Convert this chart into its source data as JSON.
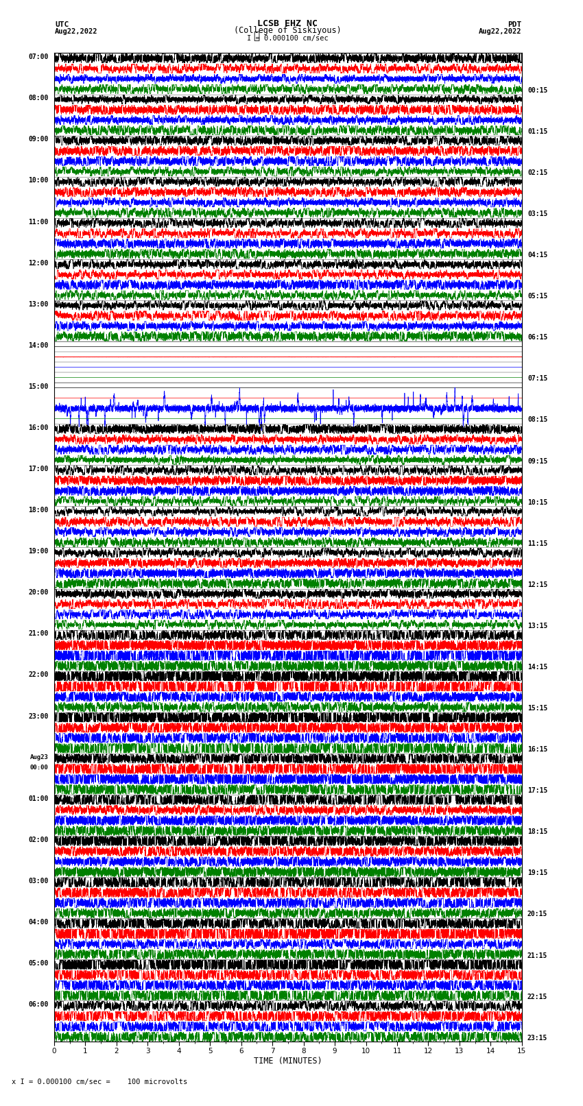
{
  "title_line1": "LCSB EHZ NC",
  "title_line2": "(College of Siskiyous)",
  "scale_text": "I = 0.000100 cm/sec",
  "label_utc": "UTC",
  "label_date_left": "Aug22,2022",
  "label_pdt": "PDT",
  "label_date_right": "Aug22,2022",
  "xlabel": "TIME (MINUTES)",
  "footer": "x I = 0.000100 cm/sec =    100 microvolts",
  "left_labels": [
    "07:00",
    "08:00",
    "09:00",
    "10:00",
    "11:00",
    "12:00",
    "13:00",
    "14:00",
    "15:00",
    "16:00",
    "17:00",
    "18:00",
    "19:00",
    "20:00",
    "21:00",
    "22:00",
    "23:00",
    "Aug23\n00:00",
    "01:00",
    "02:00",
    "03:00",
    "04:00",
    "05:00",
    "06:00"
  ],
  "right_labels": [
    "00:15",
    "01:15",
    "02:15",
    "03:15",
    "04:15",
    "05:15",
    "06:15",
    "07:15",
    "08:15",
    "09:15",
    "10:15",
    "11:15",
    "12:15",
    "13:15",
    "14:15",
    "15:15",
    "16:15",
    "17:15",
    "18:15",
    "19:15",
    "20:15",
    "21:15",
    "22:15",
    "23:15"
  ],
  "n_rows": 24,
  "traces_per_row": 4,
  "colors": [
    "black",
    "red",
    "blue",
    "green"
  ],
  "bg_color": "#ffffff",
  "xmin": 0,
  "xmax": 15,
  "xticks": [
    0,
    1,
    2,
    3,
    4,
    5,
    6,
    7,
    8,
    9,
    10,
    11,
    12,
    13,
    14,
    15
  ],
  "noise_seed": 12345,
  "flat_rows": [
    7,
    8
  ],
  "flat_row7_red_only": true,
  "flat_row8_blue_only": true
}
